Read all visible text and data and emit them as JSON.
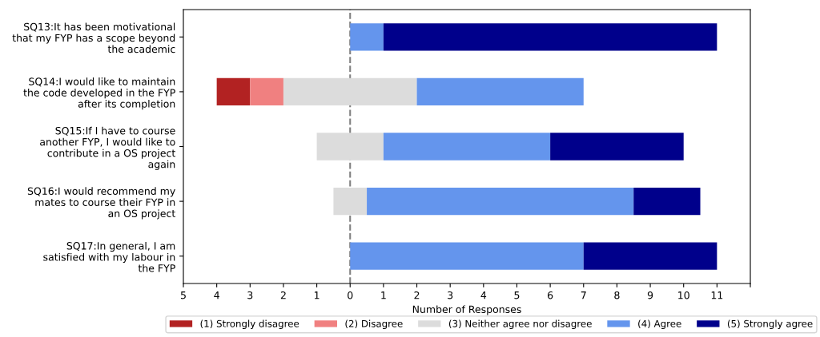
{
  "chart_data": {
    "type": "bar",
    "orientation": "horizontal",
    "xlabel": "Number of Responses",
    "categories": [
      "SQ13:It has been motivational\nthat my FYP has a scope beyond\nthe academic",
      "SQ14:I would like to maintain\nthe code developed in the FYP\nafter its completion",
      "SQ15:If I have to course\nanother FYP, I would like to\ncontribute in a OS project\nagain",
      "SQ16:I would recommend my\nmates to course their FYP in\nan OS project",
      "SQ17:In general, I am\nsatisfied with my labour in\nthe FYP"
    ],
    "series": [
      {
        "name": "(1) Strongly disagree",
        "color": "#b22222",
        "base": [
          null,
          -4,
          null,
          null,
          null
        ],
        "values": [
          null,
          1,
          null,
          null,
          null
        ]
      },
      {
        "name": "(2) Disagree",
        "color": "#f08080",
        "base": [
          null,
          -3,
          null,
          null,
          null
        ],
        "values": [
          null,
          1,
          null,
          null,
          null
        ]
      },
      {
        "name": "(3) Neither agree nor disagree",
        "color": "#dcdcdc",
        "base": [
          null,
          -2,
          -1,
          -0.5,
          null
        ],
        "values": [
          null,
          4,
          2,
          1,
          null
        ]
      },
      {
        "name": "(4) Agree",
        "color": "#6495ed",
        "base": [
          0,
          2,
          1,
          0.5,
          0
        ],
        "values": [
          1,
          5,
          5,
          8,
          7
        ]
      },
      {
        "name": "(5) Strongly agree",
        "color": "#00008b",
        "base": [
          1,
          null,
          6,
          8.5,
          7
        ],
        "values": [
          10,
          null,
          4,
          2,
          4
        ]
      }
    ],
    "xlim": [
      -5,
      12
    ],
    "xticks": [
      {
        "value": -5,
        "label": "5"
      },
      {
        "value": -4,
        "label": "4"
      },
      {
        "value": -3,
        "label": "3"
      },
      {
        "value": -2,
        "label": "2"
      },
      {
        "value": -1,
        "label": "1"
      },
      0,
      1,
      2,
      3,
      4,
      5,
      6,
      7,
      8,
      9,
      10,
      11,
      {
        "value": 12,
        "label": null
      }
    ],
    "ref_lines": [
      {
        "axis": "x",
        "value": 0,
        "color": "#808080",
        "line_style": "dashed"
      }
    ],
    "grid": false,
    "legend": "bottom"
  }
}
